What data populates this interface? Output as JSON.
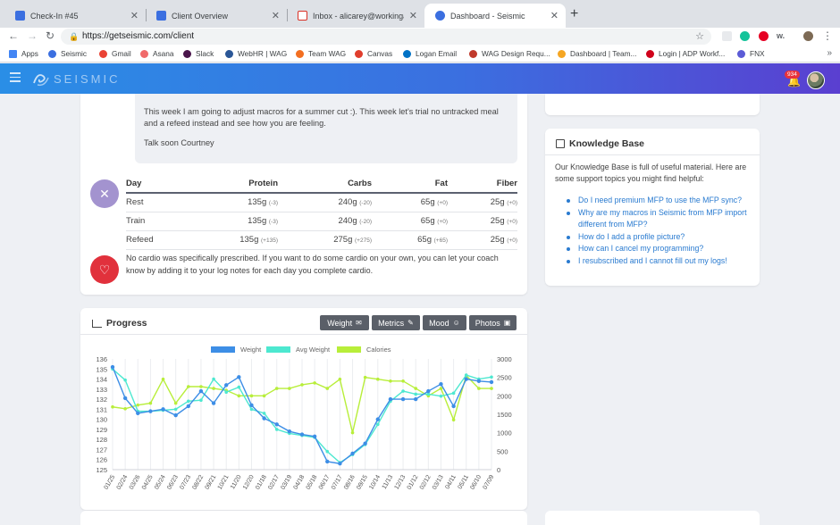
{
  "browser": {
    "tabs": [
      {
        "title": "Check-In #45",
        "favicon_color": "#3b6fe0"
      },
      {
        "title": "Client Overview",
        "favicon_color": "#3b6fe0"
      },
      {
        "title": "Inbox - alicarey@workingagain",
        "favicon_color": "#d93025"
      },
      {
        "title": "Dashboard - Seismic",
        "favicon_color": "#3b6fe0"
      }
    ],
    "url": "https://getseismic.com/client",
    "bookmarks": [
      "Apps",
      "Seismic",
      "Gmail",
      "Asana",
      "Slack",
      "WebHR | WAG",
      "Team WAG",
      "Canvas",
      "Logan Email",
      "WAG Design Requ...",
      "Dashboard | Team...",
      "Login | ADP Workf...",
      "FNX"
    ],
    "bookmark_colors": [
      "#4285f4",
      "#3b6fe0",
      "#ea4335",
      "#f06a6a",
      "#4a154b",
      "#2b5797",
      "#f36f21",
      "#e03e2d",
      "#0072c6",
      "#c0392b",
      "#f5a623",
      "#d0021b",
      "#5b5bd6"
    ]
  },
  "app": {
    "logo": "SEISMIC",
    "notification_count": "934"
  },
  "message": {
    "line1": "This week I am going to adjust macros for a summer cut :). This week let's trial no untracked meal and a refeed instead and see how you are feeling.",
    "line2": "Talk soon Courtney"
  },
  "macros": {
    "headers": [
      "Day",
      "Protein",
      "Carbs",
      "Fat",
      "Fiber"
    ],
    "rows": [
      {
        "day": "Rest",
        "protein": "135g",
        "protein_d": "(-3)",
        "carbs": "240g",
        "carbs_d": "(-20)",
        "fat": "65g",
        "fat_d": "(+0)",
        "fiber": "25g",
        "fiber_d": "(+0)"
      },
      {
        "day": "Train",
        "protein": "135g",
        "protein_d": "(-3)",
        "carbs": "240g",
        "carbs_d": "(-20)",
        "fat": "65g",
        "fat_d": "(+0)",
        "fiber": "25g",
        "fiber_d": "(+0)"
      },
      {
        "day": "Refeed",
        "protein": "135g",
        "protein_d": "(+135)",
        "carbs": "275g",
        "carbs_d": "(+275)",
        "fat": "65g",
        "fat_d": "(+65)",
        "fiber": "25g",
        "fiber_d": "(+0)"
      }
    ],
    "cardio_note": "No cardio was specifically prescribed. If you want to do some cardio on your own, you can let your coach know by adding it to your log notes for each day you complete cardio.",
    "macro_icon_color": "#a393cf",
    "cardio_icon_color": "#e1313c"
  },
  "knowledge_base": {
    "title": "Knowledge Base",
    "intro": "Our Knowledge Base is full of useful material. Here are some support topics you might find helpful:",
    "links": [
      "Do I need premium MFP to use the MFP sync?",
      "Why are my macros in Seismic from MFP import different from MFP?",
      "How do I add a profile picture?",
      "How can I cancel my programming?",
      "I resubscribed and I cannot fill out my logs!"
    ]
  },
  "progress": {
    "title": "Progress",
    "buttons": [
      {
        "label": "Weight",
        "icon": "envelope-icon"
      },
      {
        "label": "Metrics",
        "icon": "tape-icon"
      },
      {
        "label": "Mood",
        "icon": "smiley-icon"
      },
      {
        "label": "Photos",
        "icon": "images-icon"
      }
    ]
  },
  "chart_data": {
    "type": "line",
    "legend": [
      "Weight",
      "Avg Weight",
      "Calories"
    ],
    "legend_position": "top-center",
    "colors": {
      "weight": "#3d8ee6",
      "avg": "#4de8d0",
      "calories": "#b8ee3a"
    },
    "x_labels": [
      "01/25",
      "02/24",
      "03/26",
      "04/25",
      "05/24",
      "06/23",
      "07/23",
      "08/22",
      "09/21",
      "10/21",
      "11/20",
      "12/20",
      "01/18",
      "02/17",
      "03/19",
      "04/18",
      "05/18",
      "06/17",
      "07/17",
      "08/16",
      "09/15",
      "10/14",
      "11/13",
      "12/13",
      "01/12",
      "02/12",
      "03/13",
      "04/11",
      "05/11",
      "06/10",
      "07/09"
    ],
    "y_left": {
      "min": 125,
      "max": 136,
      "ticks": [
        125,
        126,
        127,
        128,
        129,
        130,
        131,
        132,
        133,
        134,
        135,
        136
      ]
    },
    "y_right": {
      "min": 0,
      "max": 3000,
      "ticks": [
        0,
        500,
        1000,
        1500,
        2000,
        2500,
        3000
      ]
    },
    "weight": [
      135.2,
      132.1,
      130.6,
      130.8,
      131.0,
      130.4,
      131.3,
      132.8,
      131.6,
      133.4,
      134.2,
      131.4,
      130.1,
      129.5,
      128.8,
      128.5,
      128.3,
      125.8,
      125.6,
      126.6,
      127.6,
      130.0,
      132.0,
      132.0,
      132.0,
      132.8,
      133.5,
      131.3,
      134.0,
      133.8,
      133.7
    ],
    "avg_weight": [
      135.0,
      133.9,
      130.8,
      130.8,
      130.9,
      131.0,
      131.8,
      131.9,
      134.0,
      132.7,
      133.2,
      131.0,
      130.6,
      129.0,
      128.6,
      128.4,
      128.2,
      126.8,
      125.7,
      126.5,
      127.5,
      129.5,
      131.8,
      132.8,
      132.5,
      132.5,
      132.3,
      132.6,
      134.4,
      134.0,
      134.2
    ],
    "calories": [
      1700,
      1650,
      1750,
      1800,
      2450,
      1800,
      2250,
      2250,
      2200,
      2150,
      2000,
      2000,
      2000,
      2200,
      2200,
      2300,
      2350,
      2200,
      2450,
      1000,
      2500,
      2450,
      2400,
      2400,
      2200,
      2000,
      2200,
      1350,
      2550,
      2200,
      2200
    ]
  }
}
